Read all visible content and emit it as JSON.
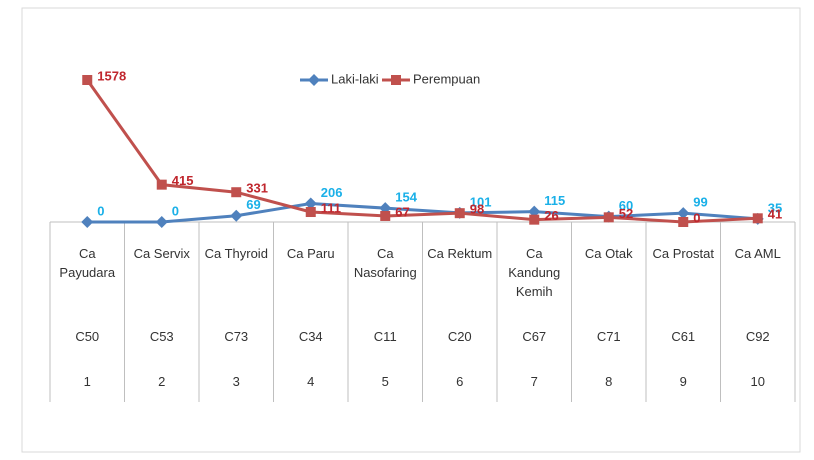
{
  "chart_data": {
    "type": "line",
    "categories": [
      "Ca Payudara",
      "Ca Servix",
      "Ca Thyroid",
      "Ca Paru",
      "Ca Nasofaring",
      "Ca Rektum",
      "Ca Kandung Kemih",
      "Ca Otak",
      "Ca Prostat",
      "Ca AML"
    ],
    "codes": [
      "C50",
      "C53",
      "C73",
      "C34",
      "C11",
      "C20",
      "C67",
      "C71",
      "C61",
      "C92"
    ],
    "numbers": [
      1,
      2,
      3,
      4,
      5,
      6,
      7,
      8,
      9,
      10
    ],
    "series": [
      {
        "name": "Laki-laki",
        "color": "#4f81bd",
        "label_color": "#1ab0e8",
        "values": [
          0,
          0,
          69,
          206,
          154,
          101,
          115,
          60,
          99,
          35
        ]
      },
      {
        "name": "Perempuan",
        "color": "#c0504d",
        "label_color": "#c0262d",
        "values": [
          1578,
          415,
          331,
          111,
          67,
          98,
          26,
          52,
          0,
          41
        ]
      }
    ],
    "legend": "top"
  }
}
